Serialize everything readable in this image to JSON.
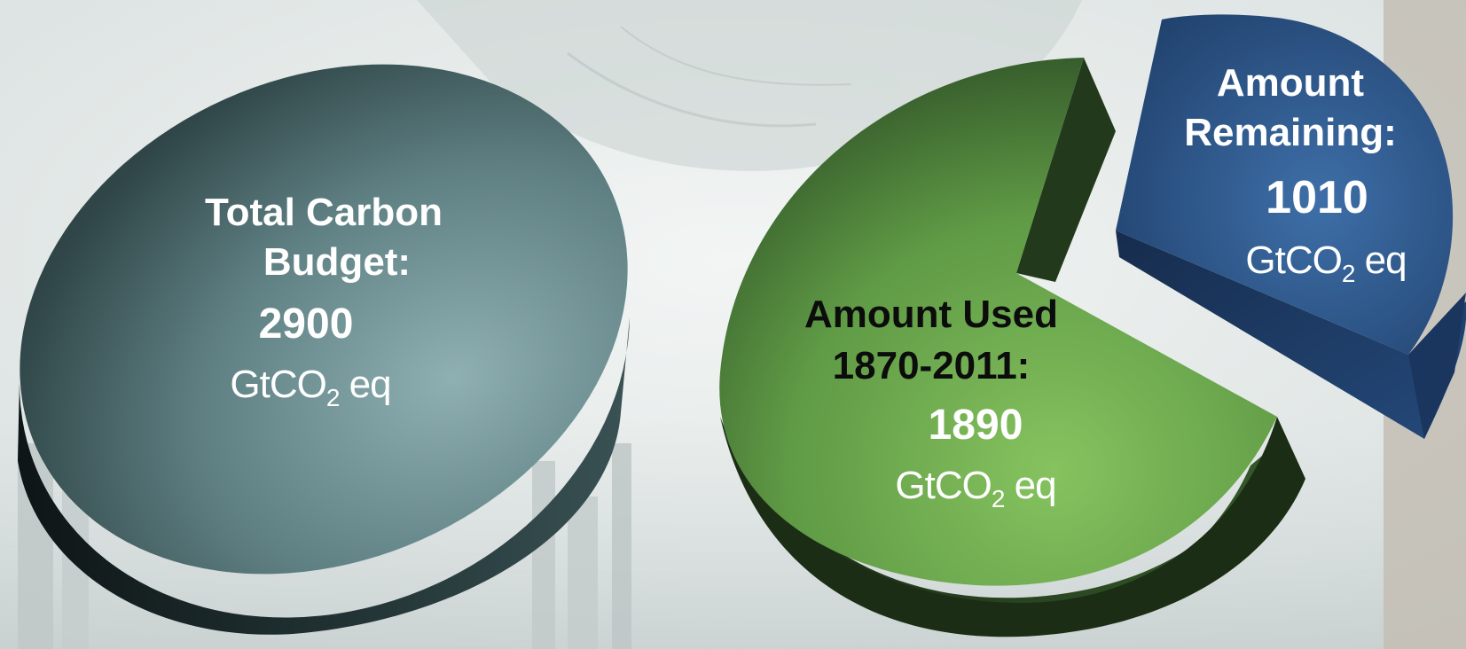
{
  "chart_data": [
    {
      "type": "pie",
      "title": "",
      "categories": [
        "Total Carbon Budget:"
      ],
      "values": [
        2900
      ],
      "unit_prefix": "GtCO",
      "unit_sub": "2",
      "unit_suffix": " eq",
      "colors": [
        "#4f6e72"
      ]
    },
    {
      "type": "pie",
      "title": "",
      "categories": [
        "Amount Used 1870-2011:",
        "Amount Remaining:"
      ],
      "values": [
        1890,
        1010
      ],
      "unit_prefix": "GtCO",
      "unit_sub": "2",
      "unit_suffix": " eq",
      "colors": [
        "#5f9a45",
        "#2f5a8f"
      ],
      "exploded_slice": "Amount Remaining:"
    }
  ],
  "labels": {
    "total": {
      "line1": "Total Carbon",
      "line2": "Budget:",
      "value": "2900"
    },
    "used": {
      "line1": "Amount Used",
      "line2": "1870-2011:",
      "value": "1890"
    },
    "remaining": {
      "line1": "Amount",
      "line2": "Remaining:",
      "value": "1010"
    }
  }
}
